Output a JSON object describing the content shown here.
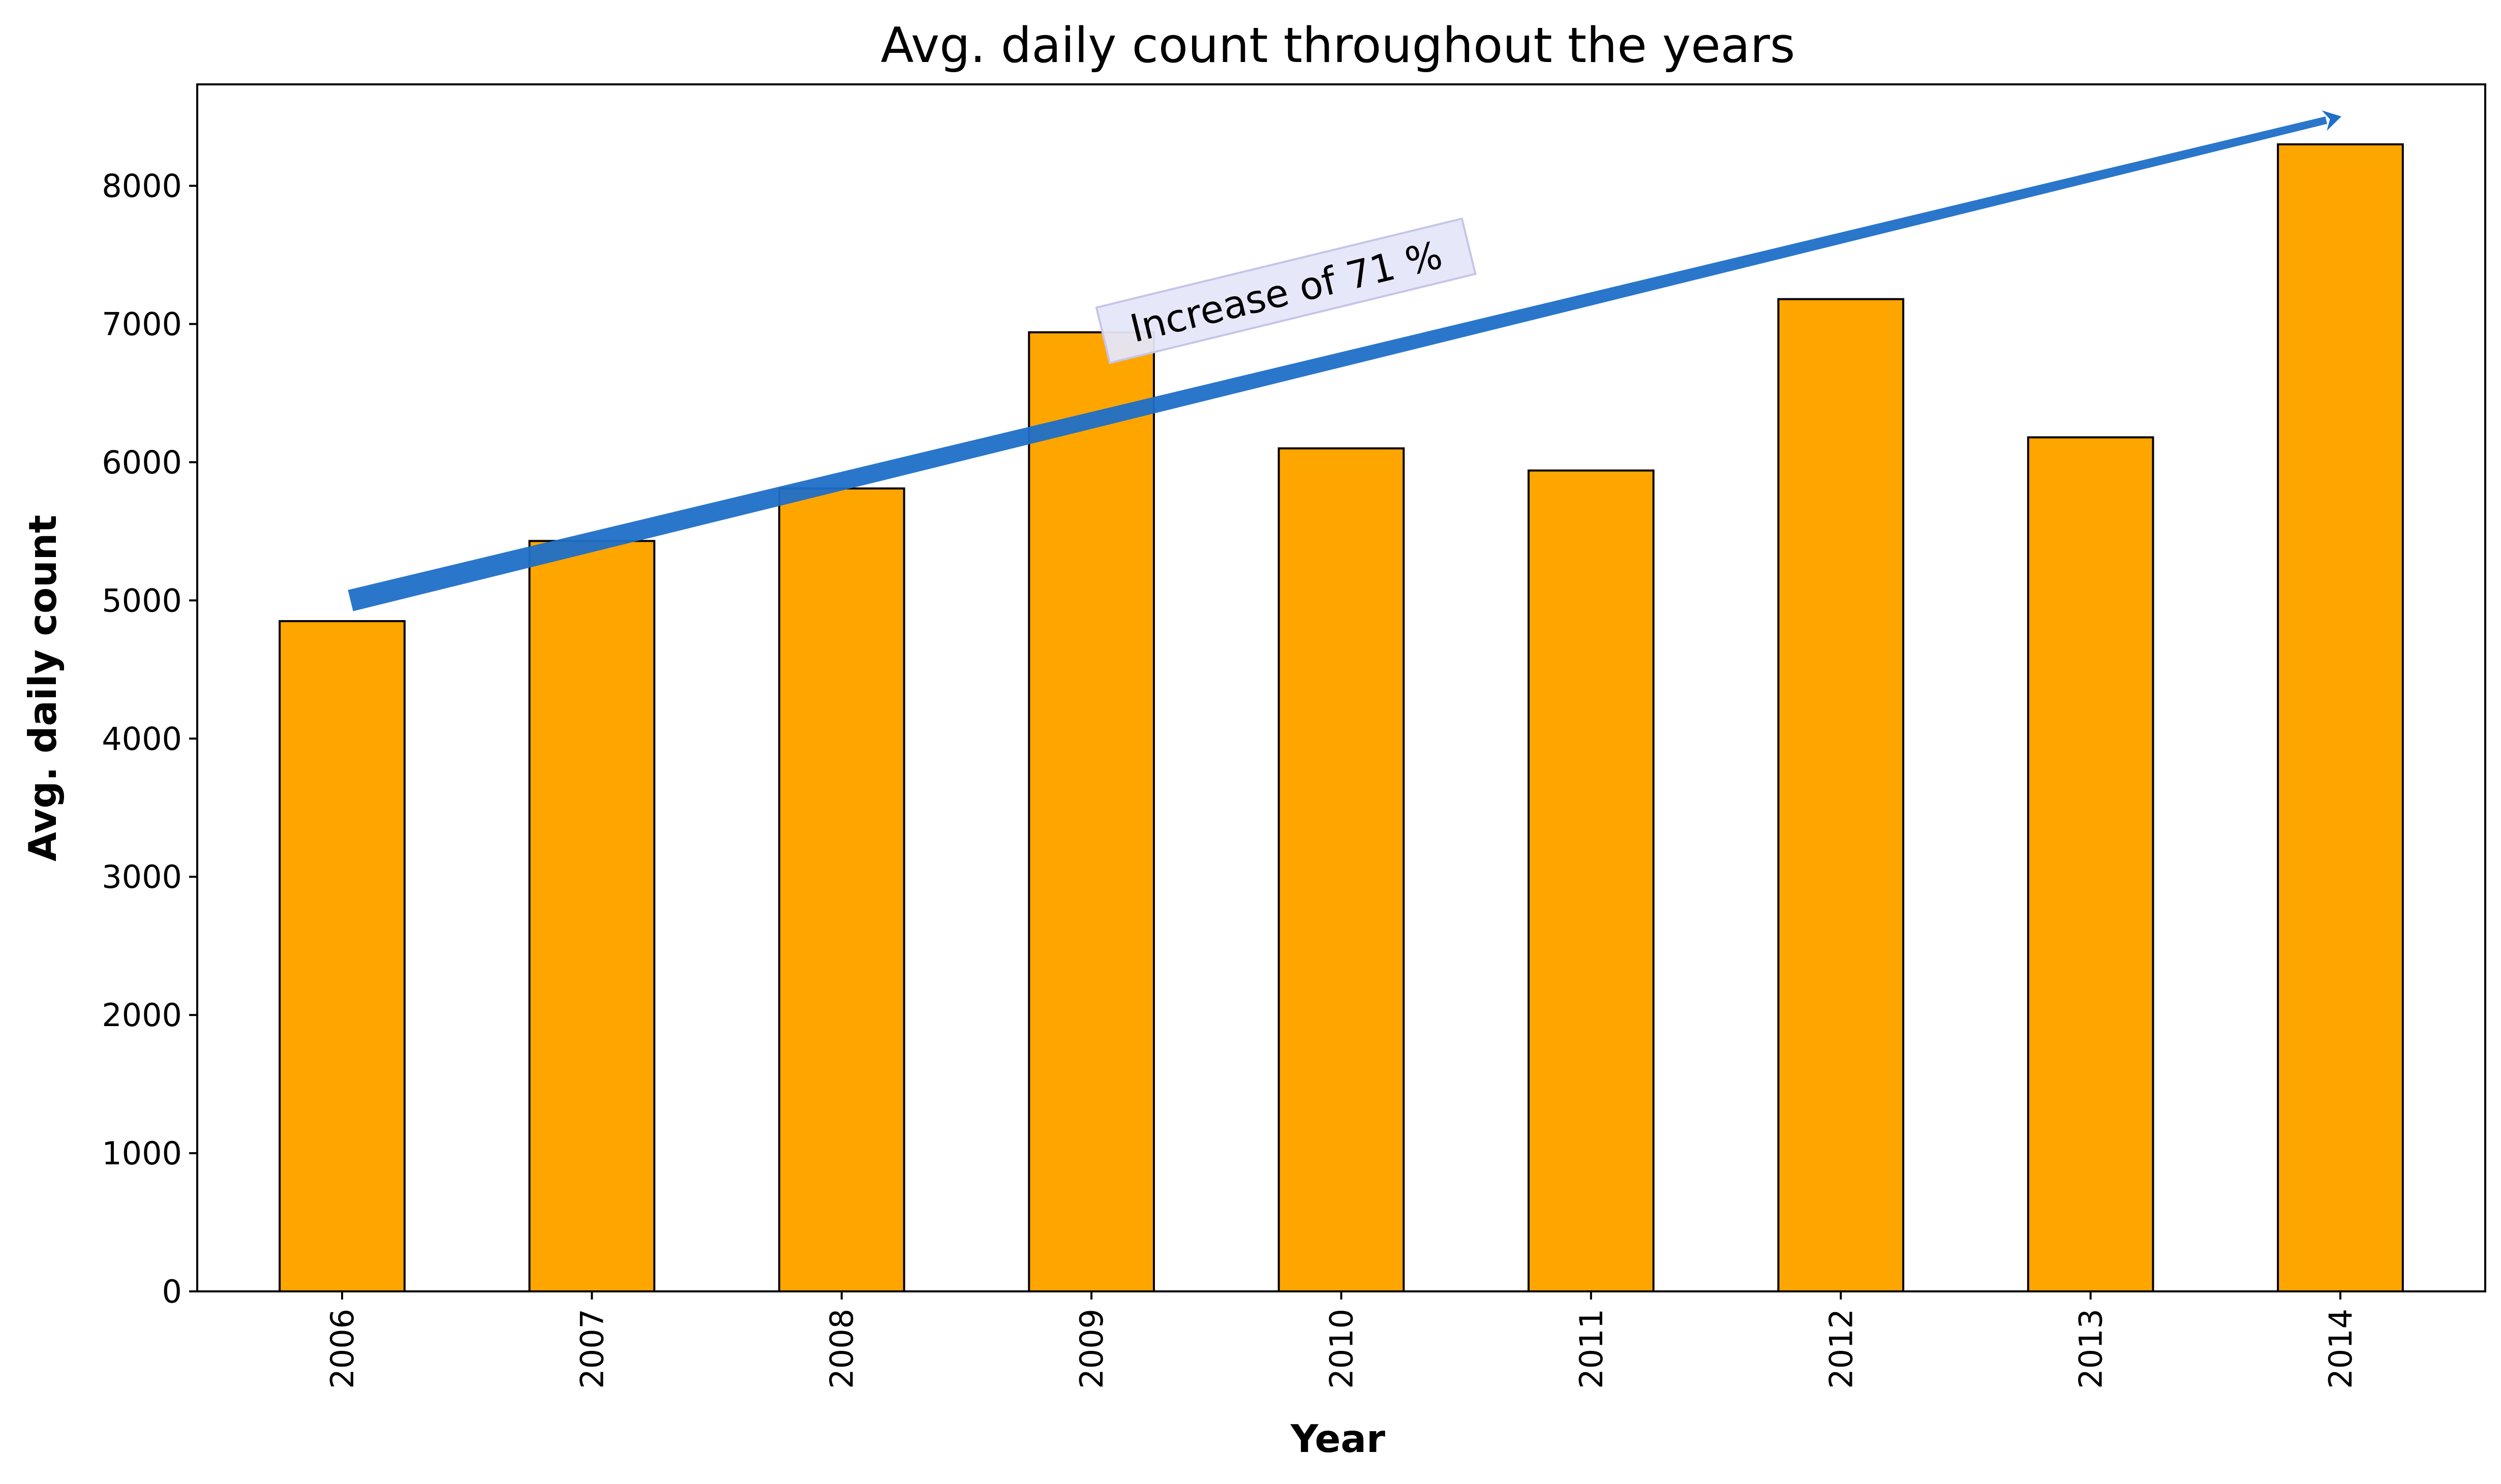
{
  "chart_data": {
    "type": "bar",
    "title": "Avg. daily count throughout the years",
    "xlabel": "Year",
    "ylabel": "Avg. daily count",
    "categories": [
      "2006",
      "2007",
      "2008",
      "2009",
      "2010",
      "2011",
      "2012",
      "2013",
      "2014"
    ],
    "values": [
      4850,
      5430,
      5810,
      6940,
      6100,
      5940,
      7180,
      6180,
      8300
    ],
    "ylim": [
      0,
      8734
    ],
    "yticks": [
      0,
      1000,
      2000,
      3000,
      4000,
      5000,
      6000,
      7000,
      8000
    ],
    "grid": false,
    "legend": "none",
    "bar_color": "#ffa500",
    "bar_edge_color": "#000000",
    "annotation": {
      "text": "Increase of 71 %",
      "arrow_color": "#1f6fc9",
      "box_color": "#e6e6fa",
      "arrow_start": {
        "x": "2006",
        "y": 5000
      },
      "arrow_end": {
        "x": "2014",
        "y": 8500
      }
    }
  }
}
